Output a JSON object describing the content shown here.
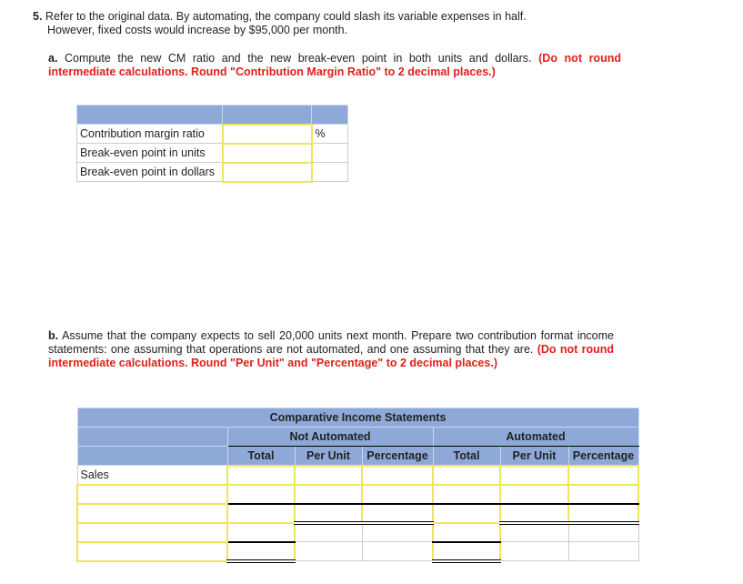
{
  "q5": {
    "number": "5.",
    "line1": "Refer to the original data. By automating, the company could slash its variable expenses in half.",
    "line2": "However, fixed costs would increase by $95,000 per month."
  },
  "a": {
    "letter": "a.",
    "text": "Compute the new CM ratio and the new break-even point in both units and dollars.",
    "note": "(Do not round intermediate calculations. Round \"Contribution Margin Ratio\" to 2 decimal places.)",
    "rows": [
      {
        "label": "Contribution margin ratio",
        "unit": "%"
      },
      {
        "label": "Break-even point in units",
        "unit": ""
      },
      {
        "label": "Break-even point in dollars",
        "unit": ""
      }
    ]
  },
  "b": {
    "letter": "b.",
    "text": "Assume that the company expects to sell 20,000 units next month. Prepare two contribution format income statements: one assuming that operations are not automated, and one assuming that they are.",
    "note": "(Do not round intermediate calculations. Round \"Per Unit\" and \"Percentage\" to 2 decimal places.)",
    "title": "Comparative Income Statements",
    "group1": "Not Automated",
    "group2": "Automated",
    "cols": [
      "Total",
      "Per Unit",
      "Percentage",
      "Total",
      "Per Unit",
      "Percentage"
    ],
    "rows": [
      {
        "label": "Sales"
      },
      {
        "label": ""
      },
      {
        "label": ""
      },
      {
        "label": ""
      },
      {
        "label": ""
      }
    ]
  },
  "colors": {
    "header": "#8ea9d8",
    "input_border": "#f0e55a",
    "note": "#e0201b"
  }
}
